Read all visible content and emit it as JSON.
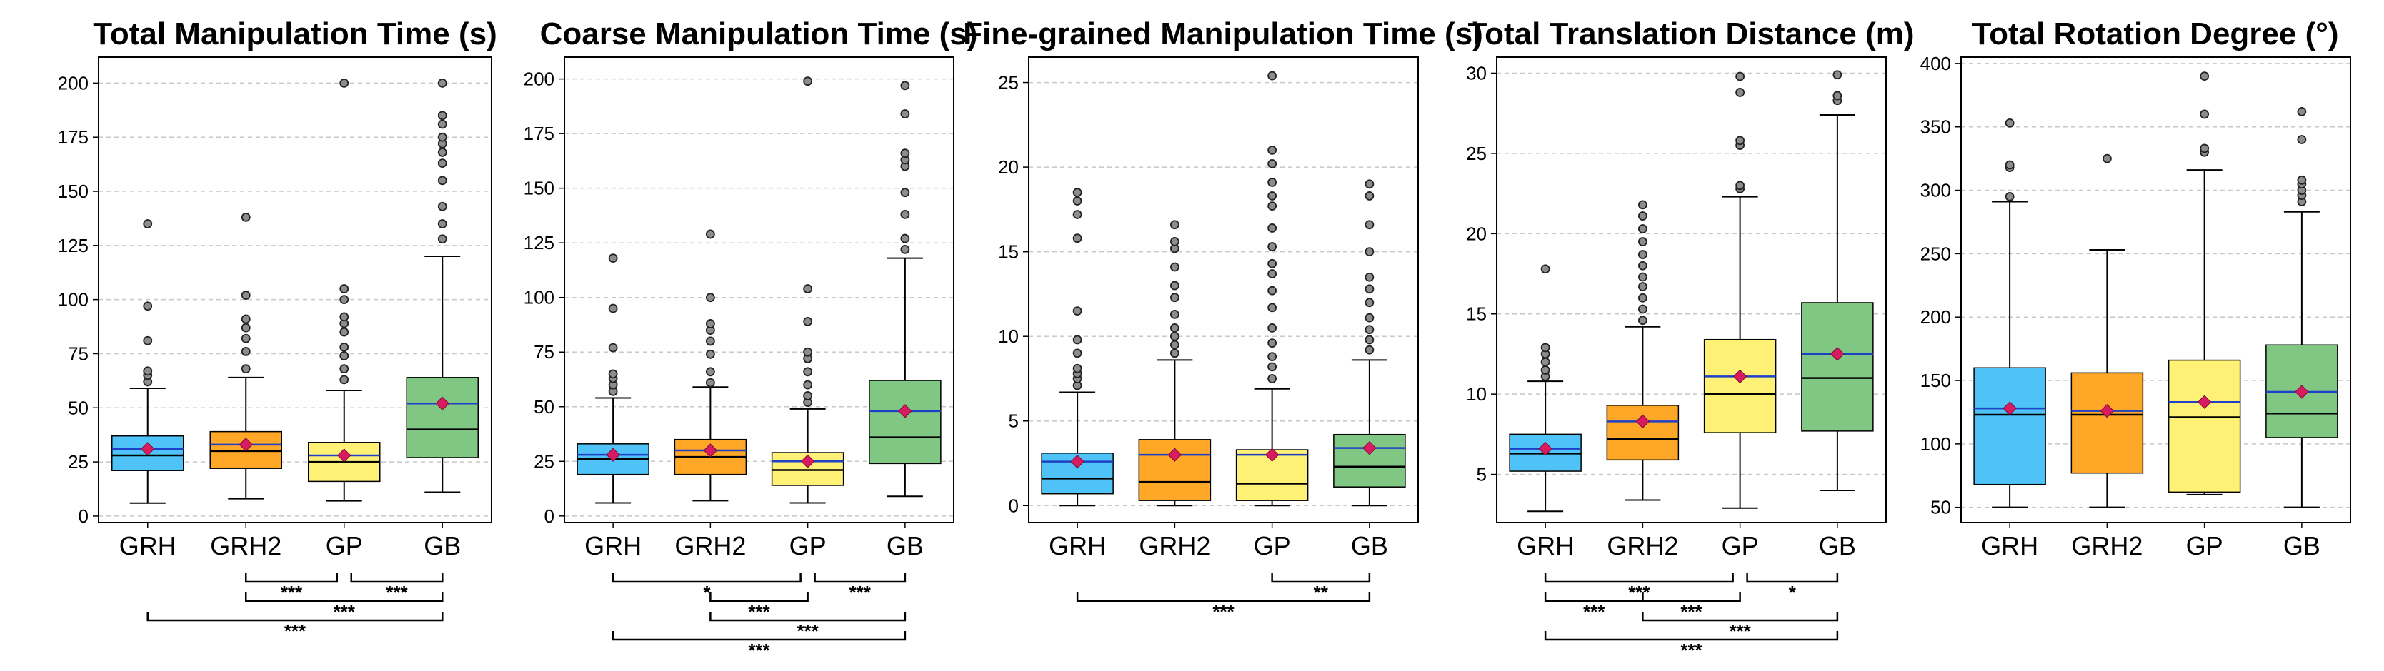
{
  "figure": {
    "categories": [
      "GRH",
      "GRH2",
      "GP",
      "GB"
    ],
    "colors": {
      "GRH": "#4fc3f7",
      "GRH2": "#ffa726",
      "GP": "#fff176",
      "GB": "#81c784",
      "mean_marker": "#d81b60",
      "mean_line": "#1e40c8",
      "median_line": "#000000",
      "grid": "#c8c8c8"
    }
  },
  "chart_data": [
    {
      "type": "box",
      "title": "Total Manipulation Time (s)",
      "ylim": [
        -3,
        212
      ],
      "yticks": [
        0,
        25,
        50,
        75,
        100,
        125,
        150,
        175,
        200
      ],
      "categories": [
        "GRH",
        "GRH2",
        "GP",
        "GB"
      ],
      "boxes": [
        {
          "whisker_low": 6,
          "q1": 21,
          "median": 28,
          "mean": 31,
          "q3": 37,
          "whisker_high": 59,
          "outliers": [
            62,
            65,
            67,
            81,
            97,
            135
          ]
        },
        {
          "whisker_low": 8,
          "q1": 22,
          "median": 30,
          "mean": 33,
          "q3": 39,
          "whisker_high": 64,
          "outliers": [
            68,
            76,
            82,
            87,
            91,
            102,
            138
          ]
        },
        {
          "whisker_low": 7,
          "q1": 16,
          "median": 25,
          "mean": 28,
          "q3": 34,
          "whisker_high": 58,
          "outliers": [
            63,
            68,
            74,
            78,
            85,
            89,
            92,
            100,
            105,
            200
          ]
        },
        {
          "whisker_low": 11,
          "q1": 27,
          "median": 40,
          "mean": 52,
          "q3": 64,
          "whisker_high": 120,
          "outliers": [
            128,
            135,
            143,
            155,
            163,
            168,
            172,
            175,
            181,
            185,
            200
          ]
        }
      ],
      "significance": [
        {
          "from": 1,
          "to": 2,
          "label": "***",
          "level": 0
        },
        {
          "from": 2,
          "to": 3,
          "label": "***",
          "level": 0
        },
        {
          "from": 1,
          "to": 3,
          "label": "***",
          "level": 1
        },
        {
          "from": 0,
          "to": 3,
          "label": "***",
          "level": 2
        }
      ]
    },
    {
      "type": "box",
      "title": "Coarse Manipulation Time (s)",
      "ylim": [
        -3,
        210
      ],
      "yticks": [
        0,
        25,
        50,
        75,
        100,
        125,
        150,
        175,
        200
      ],
      "categories": [
        "GRH",
        "GRH2",
        "GP",
        "GB"
      ],
      "boxes": [
        {
          "whisker_low": 6,
          "q1": 19,
          "median": 26,
          "mean": 28,
          "q3": 33,
          "whisker_high": 54,
          "outliers": [
            57,
            60,
            63,
            65,
            77,
            95,
            118
          ]
        },
        {
          "whisker_low": 7,
          "q1": 19,
          "median": 27,
          "mean": 30,
          "q3": 35,
          "whisker_high": 59,
          "outliers": [
            61,
            66,
            74,
            80,
            85,
            88,
            100,
            129
          ]
        },
        {
          "whisker_low": 6,
          "q1": 14,
          "median": 21,
          "mean": 25,
          "q3": 29,
          "whisker_high": 49,
          "outliers": [
            52,
            55,
            60,
            66,
            72,
            75,
            89,
            104,
            199
          ]
        },
        {
          "whisker_low": 9,
          "q1": 24,
          "median": 36,
          "mean": 48,
          "q3": 62,
          "whisker_high": 118,
          "outliers": [
            122,
            127,
            138,
            148,
            160,
            163,
            166,
            184,
            197
          ]
        }
      ],
      "significance": [
        {
          "from": 0,
          "to": 2,
          "label": "*",
          "level": 0
        },
        {
          "from": 2,
          "to": 3,
          "label": "***",
          "level": 0
        },
        {
          "from": 1,
          "to": 2,
          "label": "***",
          "level": 1
        },
        {
          "from": 1,
          "to": 3,
          "label": "***",
          "level": 2
        },
        {
          "from": 0,
          "to": 3,
          "label": "***",
          "level": 3
        }
      ]
    },
    {
      "type": "box",
      "title": "Fine-grained Manipulation Time (s)",
      "ylim": [
        -1,
        26.5
      ],
      "yticks": [
        0,
        5,
        10,
        15,
        20,
        25
      ],
      "categories": [
        "GRH",
        "GRH2",
        "GP",
        "GB"
      ],
      "boxes": [
        {
          "whisker_low": 0,
          "q1": 0.7,
          "median": 1.6,
          "mean": 2.6,
          "q3": 3.1,
          "whisker_high": 6.7,
          "outliers": [
            7.1,
            7.5,
            7.8,
            8.1,
            9,
            9.8,
            11.5,
            15.8,
            17.2,
            18,
            18.5
          ]
        },
        {
          "whisker_low": 0,
          "q1": 0.3,
          "median": 1.4,
          "mean": 3.0,
          "q3": 3.9,
          "whisker_high": 8.6,
          "outliers": [
            9,
            9.5,
            10,
            10.5,
            11.3,
            12.3,
            13,
            14.1,
            15.2,
            15.6,
            16.6
          ]
        },
        {
          "whisker_low": 0,
          "q1": 0.3,
          "median": 1.3,
          "mean": 3.0,
          "q3": 3.3,
          "whisker_high": 6.9,
          "outliers": [
            7.5,
            8.2,
            8.8,
            9.6,
            10.5,
            11.7,
            12.7,
            13.7,
            14.3,
            15.3,
            16.4,
            17.7,
            18.3,
            19.1,
            20.2,
            21,
            25.4
          ]
        },
        {
          "whisker_low": 0,
          "q1": 1.1,
          "median": 2.3,
          "mean": 3.4,
          "q3": 4.2,
          "whisker_high": 8.6,
          "outliers": [
            9.2,
            9.8,
            10.4,
            11.1,
            12,
            12.8,
            13.5,
            15,
            16.6,
            18.3,
            19
          ]
        }
      ],
      "significance": [
        {
          "from": 2,
          "to": 3,
          "label": "**",
          "level": 0
        },
        {
          "from": 0,
          "to": 3,
          "label": "***",
          "level": 1
        }
      ]
    },
    {
      "type": "box",
      "title": "Total Translation Distance (m)",
      "ylim": [
        2,
        31
      ],
      "yticks": [
        5,
        10,
        15,
        20,
        25,
        30
      ],
      "categories": [
        "GRH",
        "GRH2",
        "GP",
        "GB"
      ],
      "boxes": [
        {
          "whisker_low": 2.7,
          "q1": 5.2,
          "median": 6.3,
          "mean": 6.6,
          "q3": 7.5,
          "whisker_high": 10.8,
          "outliers": [
            11.1,
            11.5,
            12,
            12.5,
            12.9,
            17.8
          ]
        },
        {
          "whisker_low": 3.4,
          "q1": 5.9,
          "median": 7.2,
          "mean": 8.3,
          "q3": 9.3,
          "whisker_high": 14.2,
          "outliers": [
            14.6,
            15.3,
            16,
            16.7,
            17.3,
            18,
            18.7,
            19.5,
            20.3,
            21.1,
            21.8
          ]
        },
        {
          "whisker_low": 2.9,
          "q1": 7.6,
          "median": 10.0,
          "mean": 11.1,
          "q3": 13.4,
          "whisker_high": 22.3,
          "outliers": [
            22.8,
            23,
            25.5,
            25.8,
            28.8,
            29.8
          ]
        },
        {
          "whisker_low": 4,
          "q1": 7.7,
          "median": 11.0,
          "mean": 12.5,
          "q3": 15.7,
          "whisker_high": 27.4,
          "outliers": [
            28.3,
            28.6,
            29.9
          ]
        }
      ],
      "significance": [
        {
          "from": 0,
          "to": 2,
          "label": "***",
          "level": 0
        },
        {
          "from": 2,
          "to": 3,
          "label": "*",
          "level": 0
        },
        {
          "from": 0,
          "to": 1,
          "label": "***",
          "level": 1
        },
        {
          "from": 1,
          "to": 2,
          "label": "***",
          "level": 1
        },
        {
          "from": 1,
          "to": 3,
          "label": "***",
          "level": 2
        },
        {
          "from": 0,
          "to": 3,
          "label": "***",
          "level": 3
        }
      ]
    },
    {
      "type": "box",
      "title": "Total Rotation Degree (°)",
      "ylim": [
        38,
        405
      ],
      "yticks": [
        50,
        100,
        150,
        200,
        250,
        300,
        350,
        400
      ],
      "categories": [
        "GRH",
        "GRH2",
        "GP",
        "GB"
      ],
      "boxes": [
        {
          "whisker_low": 50,
          "q1": 68,
          "median": 123,
          "mean": 128,
          "q3": 160,
          "whisker_high": 291,
          "outliers": [
            295,
            318,
            320,
            353
          ]
        },
        {
          "whisker_low": 50,
          "q1": 77,
          "median": 123,
          "mean": 126,
          "q3": 156,
          "whisker_high": 253,
          "outliers": [
            325
          ]
        },
        {
          "whisker_low": 60,
          "q1": 62,
          "median": 121,
          "mean": 133,
          "q3": 166,
          "whisker_high": 316,
          "outliers": [
            330,
            333,
            360,
            390
          ]
        },
        {
          "whisker_low": 50,
          "q1": 105,
          "median": 124,
          "mean": 141,
          "q3": 178,
          "whisker_high": 283,
          "outliers": [
            291,
            296,
            300,
            305,
            308,
            340,
            362
          ]
        }
      ],
      "significance": []
    }
  ]
}
